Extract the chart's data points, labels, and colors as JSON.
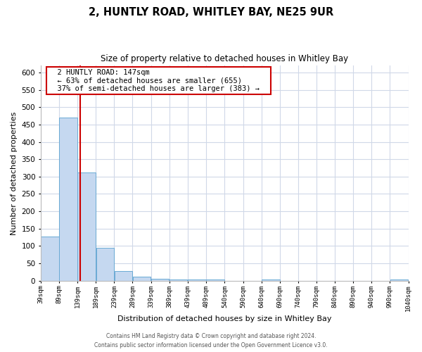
{
  "title": "2, HUNTLY ROAD, WHITLEY BAY, NE25 9UR",
  "subtitle": "Size of property relative to detached houses in Whitley Bay",
  "xlabel": "Distribution of detached houses by size in Whitley Bay",
  "ylabel": "Number of detached properties",
  "footer_line1": "Contains HM Land Registry data © Crown copyright and database right 2024.",
  "footer_line2": "Contains public sector information licensed under the Open Government Licence v3.0.",
  "annotation_title": "2 HUNTLY ROAD: 147sqm",
  "annotation_line1": "← 63% of detached houses are smaller (655)",
  "annotation_line2": "37% of semi-detached houses are larger (383) →",
  "property_line_x": 147,
  "bar_edges": [
    39,
    89,
    139,
    189,
    239,
    289,
    339,
    389,
    439,
    489,
    540,
    590,
    640,
    690,
    740,
    790,
    840,
    890,
    940,
    990,
    1040
  ],
  "bar_heights": [
    128,
    470,
    311,
    95,
    27,
    12,
    5,
    3,
    3,
    3,
    0,
    0,
    3,
    0,
    0,
    0,
    0,
    0,
    0,
    3
  ],
  "bar_color": "#c5d8f0",
  "bar_edge_color": "#6aaad4",
  "vline_color": "#cc0000",
  "ylim": [
    0,
    620
  ],
  "yticks": [
    0,
    50,
    100,
    150,
    200,
    250,
    300,
    350,
    400,
    450,
    500,
    550,
    600
  ],
  "bg_color": "#ffffff",
  "grid_color": "#d0d8e8",
  "annotation_box_color": "#ffffff",
  "annotation_box_edge_color": "#cc0000"
}
